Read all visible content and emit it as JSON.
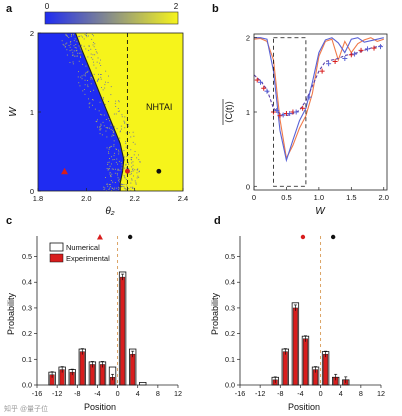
{
  "watermark": "知乎 @量子位",
  "colors": {
    "blue": "#1f2cf2",
    "yellow": "#f6f41b",
    "red": "#d81d1d",
    "purple": "#5b3fa8",
    "numerical_bar_edge": "#111111",
    "zero_line": "#d89a55",
    "orange_curve": "#f07a4a",
    "blue_curve": "#5a63d6"
  },
  "chart_data": [
    {
      "panel": "a",
      "type": "heatmap",
      "xlabel": "θ₂",
      "ylabel": "W",
      "xlim": [
        1.8,
        2.4
      ],
      "ylim": [
        0,
        2
      ],
      "xticks": [
        "1.8",
        "2.0",
        "2.2",
        "2.4"
      ],
      "yticks": [
        "0",
        "1",
        "2"
      ],
      "colorbar": {
        "min_label": "0",
        "max_label": "2"
      },
      "region_label": "NHTAI",
      "dashed_vertical_at": 2.17,
      "boundary_curve": [
        [
          1.955,
          2.0
        ],
        [
          1.98,
          1.8
        ],
        [
          2.02,
          1.5
        ],
        [
          2.06,
          1.2
        ],
        [
          2.1,
          0.9
        ],
        [
          2.14,
          0.6
        ],
        [
          2.155,
          0.4
        ],
        [
          2.15,
          0.25
        ],
        [
          2.14,
          0.1
        ],
        [
          2.14,
          0.0
        ]
      ],
      "markers": [
        {
          "shape": "triangle",
          "color": "red",
          "x": 1.91,
          "y": 0.25
        },
        {
          "shape": "circle",
          "color": "red",
          "x": 2.17,
          "y": 0.25
        },
        {
          "shape": "circle",
          "color": "black",
          "x": 2.3,
          "y": 0.25
        }
      ]
    },
    {
      "panel": "b",
      "type": "line",
      "xlabel": "W",
      "ylabel": "⟨C(t)⟩ (overlined)",
      "xlim": [
        0,
        2.05
      ],
      "ylim": [
        -0.05,
        2.05
      ],
      "xticks": [
        "0",
        "0.5",
        "1.0",
        "1.5",
        "2.0"
      ],
      "yticks": [
        "0",
        "1",
        "2"
      ],
      "dashed_box": {
        "x": [
          0.3,
          0.8
        ],
        "y": [
          0,
          2
        ]
      },
      "series": [
        {
          "style": "solid",
          "color": "orange",
          "x": [
            0,
            0.1,
            0.2,
            0.3,
            0.4,
            0.5,
            0.6,
            0.7,
            0.8,
            0.9,
            1.0,
            1.1,
            1.2,
            1.3,
            1.4,
            1.5,
            1.6,
            1.7,
            1.8,
            1.9,
            2.0
          ],
          "y": [
            1.98,
            1.99,
            1.95,
            1.7,
            0.9,
            0.38,
            0.55,
            0.78,
            0.95,
            1.25,
            1.75,
            1.95,
            1.98,
            1.7,
            1.95,
            1.8,
            1.92,
            1.97,
            2.0,
            1.95,
            1.98
          ]
        },
        {
          "style": "solid",
          "color": "blue",
          "x": [
            0,
            0.1,
            0.2,
            0.3,
            0.4,
            0.5,
            0.6,
            0.7,
            0.8,
            0.9,
            1.0,
            1.1,
            1.2,
            1.3,
            1.4,
            1.5,
            1.6,
            1.7,
            1.8,
            1.9,
            2.0
          ],
          "y": [
            2.0,
            2.0,
            1.98,
            1.55,
            0.75,
            0.35,
            0.62,
            0.88,
            1.05,
            1.4,
            1.8,
            1.97,
            2.0,
            1.93,
            1.8,
            1.98,
            2.0,
            1.94,
            1.96,
            1.98,
            2.0
          ]
        },
        {
          "style": "dashed",
          "color": "purple",
          "x": [
            0,
            0.1,
            0.2,
            0.3,
            0.4,
            0.5,
            0.6,
            0.7,
            0.8,
            0.9,
            1.0,
            1.1,
            1.2,
            1.3,
            1.4,
            1.5,
            1.6,
            1.7,
            1.8,
            1.9,
            2.0
          ],
          "y": [
            1.5,
            1.42,
            1.3,
            1.05,
            0.98,
            0.95,
            0.98,
            1.02,
            1.15,
            1.35,
            1.55,
            1.68,
            1.7,
            1.72,
            1.76,
            1.78,
            1.8,
            1.83,
            1.86,
            1.88,
            1.9
          ]
        },
        {
          "style": "markers",
          "color": "red",
          "marker": "+",
          "x": [
            0.05,
            0.15,
            0.3,
            0.4,
            0.5,
            0.6,
            0.75,
            1.05,
            1.25,
            1.5,
            1.65,
            1.85
          ],
          "y": [
            1.43,
            1.32,
            1.0,
            0.95,
            0.98,
            1.0,
            1.05,
            1.55,
            1.68,
            1.77,
            1.83,
            1.86
          ]
        },
        {
          "style": "markers",
          "color": "blue",
          "marker": "+",
          "x": [
            0.1,
            0.2,
            0.35,
            0.45,
            0.55,
            0.65,
            0.85,
            1.15,
            1.4,
            1.55,
            1.75,
            1.95
          ],
          "y": [
            1.4,
            1.28,
            1.02,
            0.96,
            0.98,
            1.0,
            1.2,
            1.65,
            1.72,
            1.78,
            1.85,
            1.88
          ]
        }
      ]
    },
    {
      "panel": "c",
      "type": "bar",
      "xlabel": "Position",
      "ylabel": "Probability",
      "xlim": [
        -16,
        12
      ],
      "ylim": [
        0,
        0.58
      ],
      "xticks": [
        "-16",
        "-12",
        "-8",
        "-4",
        "0",
        "4",
        "8",
        "12"
      ],
      "yticks": [
        "0.0",
        "0.1",
        "0.2",
        "0.3",
        "0.4",
        "0.5"
      ],
      "legend": [
        "Numerical",
        "Experimental"
      ],
      "zero_line_at": 0,
      "top_markers": [
        {
          "shape": "triangle",
          "color": "red",
          "x": -3.5
        },
        {
          "shape": "circle",
          "color": "black",
          "x": 2.5
        }
      ],
      "positions": [
        -13,
        -11,
        -9,
        -7,
        -5,
        -3,
        -1,
        1,
        3,
        5
      ],
      "numerical": [
        0.05,
        0.07,
        0.06,
        0.14,
        0.09,
        0.09,
        0.07,
        0.44,
        0.14,
        0.01
      ],
      "experimental": [
        0.04,
        0.06,
        0.05,
        0.13,
        0.08,
        0.08,
        0.03,
        0.42,
        0.12,
        0.0
      ]
    },
    {
      "panel": "d",
      "type": "bar",
      "xlabel": "Position",
      "ylabel": "Probability",
      "xlim": [
        -16,
        12
      ],
      "ylim": [
        0,
        0.58
      ],
      "xticks": [
        "-16",
        "-12",
        "-8",
        "-4",
        "0",
        "4",
        "8",
        "12"
      ],
      "yticks": [
        "0.0",
        "0.1",
        "0.2",
        "0.3",
        "0.4",
        "0.5"
      ],
      "zero_line_at": 0,
      "top_markers": [
        {
          "shape": "circle",
          "color": "red",
          "x": -3.5
        },
        {
          "shape": "circle",
          "color": "black",
          "x": 2.5
        }
      ],
      "positions": [
        -9,
        -7,
        -5,
        -3,
        -1,
        1,
        3,
        5
      ],
      "numerical": [
        0.03,
        0.14,
        0.32,
        0.19,
        0.07,
        0.13,
        0.03,
        0.02
      ],
      "experimental": [
        0.02,
        0.13,
        0.3,
        0.18,
        0.06,
        0.12,
        0.03,
        0.02
      ]
    }
  ]
}
